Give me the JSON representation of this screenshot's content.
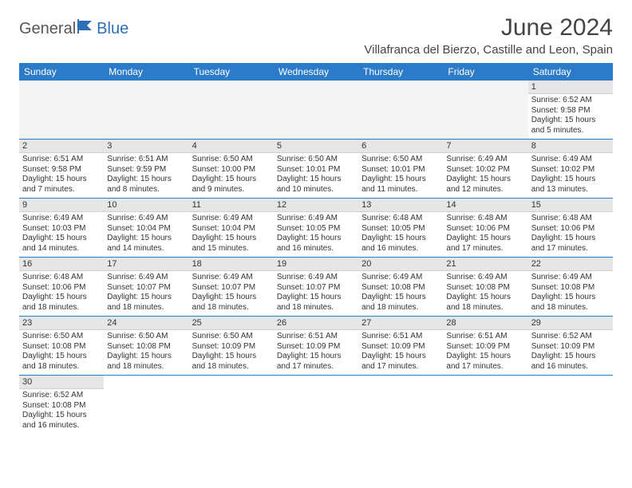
{
  "logo": {
    "part1": "General",
    "part2": "Blue"
  },
  "title": "June 2024",
  "location": "Villafranca del Bierzo, Castille and Leon, Spain",
  "weekdays": [
    "Sunday",
    "Monday",
    "Tuesday",
    "Wednesday",
    "Thursday",
    "Friday",
    "Saturday"
  ],
  "colors": {
    "header_bg": "#2c7bc9",
    "header_text": "#ffffff",
    "daynum_bg": "#e6e6e6",
    "logo_accent": "#2c6fb8"
  },
  "firstDayOffset": 6,
  "days": [
    {
      "n": 1,
      "sunrise": "6:52 AM",
      "sunset": "9:58 PM",
      "daylight": "15 hours and 5 minutes."
    },
    {
      "n": 2,
      "sunrise": "6:51 AM",
      "sunset": "9:58 PM",
      "daylight": "15 hours and 7 minutes."
    },
    {
      "n": 3,
      "sunrise": "6:51 AM",
      "sunset": "9:59 PM",
      "daylight": "15 hours and 8 minutes."
    },
    {
      "n": 4,
      "sunrise": "6:50 AM",
      "sunset": "10:00 PM",
      "daylight": "15 hours and 9 minutes."
    },
    {
      "n": 5,
      "sunrise": "6:50 AM",
      "sunset": "10:01 PM",
      "daylight": "15 hours and 10 minutes."
    },
    {
      "n": 6,
      "sunrise": "6:50 AM",
      "sunset": "10:01 PM",
      "daylight": "15 hours and 11 minutes."
    },
    {
      "n": 7,
      "sunrise": "6:49 AM",
      "sunset": "10:02 PM",
      "daylight": "15 hours and 12 minutes."
    },
    {
      "n": 8,
      "sunrise": "6:49 AM",
      "sunset": "10:02 PM",
      "daylight": "15 hours and 13 minutes."
    },
    {
      "n": 9,
      "sunrise": "6:49 AM",
      "sunset": "10:03 PM",
      "daylight": "15 hours and 14 minutes."
    },
    {
      "n": 10,
      "sunrise": "6:49 AM",
      "sunset": "10:04 PM",
      "daylight": "15 hours and 14 minutes."
    },
    {
      "n": 11,
      "sunrise": "6:49 AM",
      "sunset": "10:04 PM",
      "daylight": "15 hours and 15 minutes."
    },
    {
      "n": 12,
      "sunrise": "6:49 AM",
      "sunset": "10:05 PM",
      "daylight": "15 hours and 16 minutes."
    },
    {
      "n": 13,
      "sunrise": "6:48 AM",
      "sunset": "10:05 PM",
      "daylight": "15 hours and 16 minutes."
    },
    {
      "n": 14,
      "sunrise": "6:48 AM",
      "sunset": "10:06 PM",
      "daylight": "15 hours and 17 minutes."
    },
    {
      "n": 15,
      "sunrise": "6:48 AM",
      "sunset": "10:06 PM",
      "daylight": "15 hours and 17 minutes."
    },
    {
      "n": 16,
      "sunrise": "6:48 AM",
      "sunset": "10:06 PM",
      "daylight": "15 hours and 18 minutes."
    },
    {
      "n": 17,
      "sunrise": "6:49 AM",
      "sunset": "10:07 PM",
      "daylight": "15 hours and 18 minutes."
    },
    {
      "n": 18,
      "sunrise": "6:49 AM",
      "sunset": "10:07 PM",
      "daylight": "15 hours and 18 minutes."
    },
    {
      "n": 19,
      "sunrise": "6:49 AM",
      "sunset": "10:07 PM",
      "daylight": "15 hours and 18 minutes."
    },
    {
      "n": 20,
      "sunrise": "6:49 AM",
      "sunset": "10:08 PM",
      "daylight": "15 hours and 18 minutes."
    },
    {
      "n": 21,
      "sunrise": "6:49 AM",
      "sunset": "10:08 PM",
      "daylight": "15 hours and 18 minutes."
    },
    {
      "n": 22,
      "sunrise": "6:49 AM",
      "sunset": "10:08 PM",
      "daylight": "15 hours and 18 minutes."
    },
    {
      "n": 23,
      "sunrise": "6:50 AM",
      "sunset": "10:08 PM",
      "daylight": "15 hours and 18 minutes."
    },
    {
      "n": 24,
      "sunrise": "6:50 AM",
      "sunset": "10:08 PM",
      "daylight": "15 hours and 18 minutes."
    },
    {
      "n": 25,
      "sunrise": "6:50 AM",
      "sunset": "10:09 PM",
      "daylight": "15 hours and 18 minutes."
    },
    {
      "n": 26,
      "sunrise": "6:51 AM",
      "sunset": "10:09 PM",
      "daylight": "15 hours and 17 minutes."
    },
    {
      "n": 27,
      "sunrise": "6:51 AM",
      "sunset": "10:09 PM",
      "daylight": "15 hours and 17 minutes."
    },
    {
      "n": 28,
      "sunrise": "6:51 AM",
      "sunset": "10:09 PM",
      "daylight": "15 hours and 17 minutes."
    },
    {
      "n": 29,
      "sunrise": "6:52 AM",
      "sunset": "10:09 PM",
      "daylight": "15 hours and 16 minutes."
    },
    {
      "n": 30,
      "sunrise": "6:52 AM",
      "sunset": "10:08 PM",
      "daylight": "15 hours and 16 minutes."
    }
  ],
  "labels": {
    "sunrise": "Sunrise:",
    "sunset": "Sunset:",
    "daylight": "Daylight:"
  }
}
